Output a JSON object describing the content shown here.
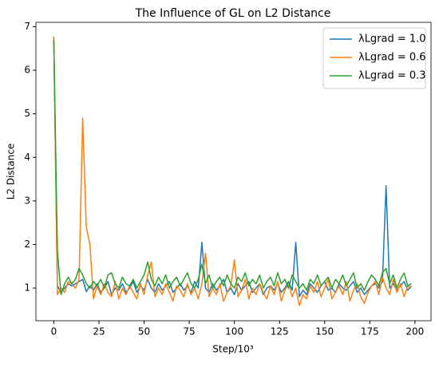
{
  "chart_data": {
    "type": "line",
    "title": "The Influence of GL on L2 Distance",
    "xlabel": "Step/10³",
    "ylabel": "L2 Distance",
    "x": [
      0,
      2,
      4,
      6,
      8,
      10,
      12,
      14,
      16,
      18,
      20,
      22,
      24,
      26,
      28,
      30,
      32,
      34,
      36,
      38,
      40,
      42,
      44,
      46,
      48,
      50,
      52,
      54,
      56,
      58,
      60,
      62,
      64,
      66,
      68,
      70,
      72,
      74,
      76,
      78,
      80,
      82,
      84,
      86,
      88,
      90,
      92,
      94,
      96,
      98,
      100,
      102,
      104,
      106,
      108,
      110,
      112,
      114,
      116,
      118,
      120,
      122,
      124,
      126,
      128,
      130,
      132,
      134,
      136,
      138,
      140,
      142,
      144,
      146,
      148,
      150,
      152,
      154,
      156,
      158,
      160,
      162,
      164,
      166,
      168,
      170,
      172,
      174,
      176,
      178,
      180,
      182,
      184,
      186,
      188,
      190,
      192,
      194,
      196,
      198
    ],
    "series": [
      {
        "name": "λLgrad = 1.0",
        "color": "#1f77b4",
        "values": [
          6.7,
          1.05,
          0.9,
          1.0,
          1.1,
          1.05,
          1.1,
          1.15,
          1.2,
          0.92,
          1.05,
          0.95,
          1.1,
          0.9,
          1.0,
          1.15,
          0.85,
          1.0,
          0.95,
          1.1,
          0.9,
          1.0,
          1.15,
          0.9,
          1.05,
          0.95,
          1.2,
          1.0,
          0.9,
          1.1,
          0.95,
          1.05,
          1.15,
          0.9,
          1.0,
          1.1,
          0.95,
          1.05,
          0.9,
          1.15,
          1.0,
          2.05,
          1.0,
          0.9,
          1.1,
          0.95,
          1.05,
          1.2,
          0.9,
          1.0,
          0.85,
          1.1,
          0.95,
          1.05,
          1.15,
          0.9,
          1.0,
          1.1,
          0.85,
          1.0,
          1.05,
          0.95,
          1.1,
          0.9,
          1.0,
          1.15,
          0.95,
          2.05,
          0.8,
          0.95,
          0.85,
          1.1,
          1.0,
          0.9,
          1.05,
          1.15,
          0.95,
          1.0,
          0.9,
          1.1,
          1.0,
          0.95,
          1.05,
          1.15,
          0.9,
          1.0,
          0.85,
          0.95,
          1.05,
          1.1,
          1.0,
          1.15,
          3.35,
          1.0,
          1.1,
          0.95,
          1.05,
          1.15,
          0.95,
          1.05
        ]
      },
      {
        "name": "λLgrad = 0.6",
        "color": "#ff7f0e",
        "values": [
          6.77,
          0.85,
          1.0,
          0.9,
          1.15,
          1.1,
          1.0,
          1.2,
          4.9,
          2.4,
          2.0,
          0.75,
          1.05,
          0.85,
          1.1,
          0.9,
          0.8,
          1.15,
          0.75,
          1.0,
          0.85,
          1.05,
          0.9,
          0.75,
          1.1,
          0.85,
          1.3,
          1.6,
          0.8,
          1.0,
          0.85,
          1.1,
          0.9,
          0.7,
          1.05,
          0.95,
          0.8,
          1.1,
          0.85,
          1.0,
          0.75,
          1.1,
          1.8,
          0.8,
          1.0,
          0.85,
          1.1,
          0.7,
          0.9,
          1.05,
          1.65,
          0.8,
          0.95,
          1.2,
          0.75,
          1.0,
          0.85,
          1.1,
          0.9,
          0.75,
          1.05,
          0.85,
          1.15,
          0.7,
          0.95,
          1.1,
          0.8,
          1.0,
          0.6,
          0.85,
          0.75,
          1.05,
          0.9,
          1.15,
          0.8,
          1.0,
          1.2,
          0.75,
          0.9,
          1.05,
          0.85,
          1.15,
          0.7,
          0.95,
          1.1,
          0.8,
          0.65,
          0.9,
          1.05,
          1.15,
          0.85,
          1.25,
          1.0,
          0.85,
          1.2,
          0.9,
          1.1,
          0.8,
          1.05,
          1.0
        ]
      },
      {
        "name": "λLgrad = 0.3",
        "color": "#2ca02c",
        "values": [
          6.7,
          1.85,
          0.85,
          1.1,
          1.25,
          1.1,
          1.2,
          1.45,
          1.3,
          1.1,
          1.0,
          1.15,
          1.05,
          1.2,
          1.0,
          1.3,
          1.35,
          1.1,
          1.0,
          1.25,
          1.1,
          1.05,
          1.2,
          1.0,
          1.15,
          1.3,
          1.6,
          1.2,
          1.05,
          1.25,
          1.1,
          1.3,
          1.0,
          1.15,
          1.25,
          1.05,
          1.2,
          1.35,
          1.1,
          1.0,
          1.2,
          1.55,
          1.1,
          1.3,
          1.0,
          1.15,
          1.25,
          1.05,
          1.3,
          1.1,
          1.0,
          1.25,
          1.15,
          1.35,
          1.05,
          1.2,
          1.1,
          1.3,
          1.0,
          1.15,
          1.25,
          1.05,
          1.35,
          1.1,
          1.2,
          1.0,
          1.3,
          1.15,
          1.0,
          1.1,
          0.95,
          1.2,
          1.1,
          1.3,
          1.05,
          1.15,
          1.25,
          1.0,
          1.2,
          1.1,
          1.3,
          1.05,
          1.2,
          1.35,
          1.0,
          1.1,
          0.95,
          1.15,
          1.3,
          1.2,
          1.05,
          1.35,
          1.45,
          1.1,
          1.3,
          1.0,
          1.2,
          1.35,
          1.05,
          1.1
        ]
      }
    ],
    "xlim": [
      -9.9,
      208.9
    ],
    "xticks": [
      0,
      25,
      50,
      75,
      100,
      125,
      150,
      175,
      200
    ],
    "ylim": [
      0.25,
      7.1
    ],
    "yticks": [
      1,
      2,
      3,
      4,
      5,
      6,
      7
    ],
    "legend": "upper right",
    "grid": false
  }
}
